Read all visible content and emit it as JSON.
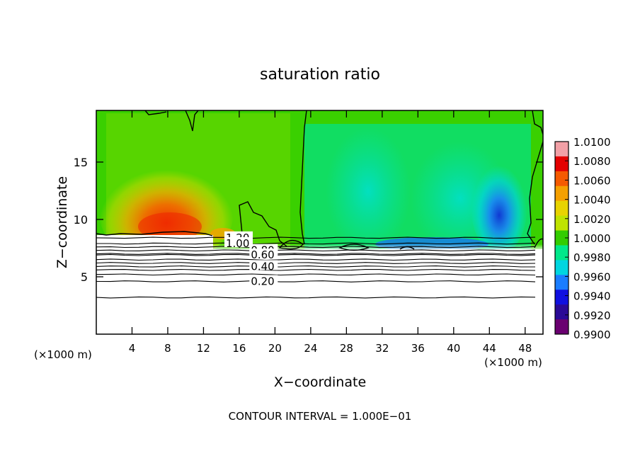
{
  "chart_data": {
    "type": "heatmap",
    "title": "saturation ratio",
    "xlabel": "X−coordinate",
    "ylabel": "Z−coordinate",
    "x_unit_left": "(×1000 m)",
    "x_unit_right": "(×1000 m)",
    "footer": "CONTOUR INTERVAL = 1.000E−01",
    "xlim": [
      0,
      50
    ],
    "ylim": [
      0,
      19.5
    ],
    "x_ticks": [
      4,
      8,
      12,
      16,
      20,
      24,
      28,
      32,
      36,
      40,
      44,
      48
    ],
    "y_ticks": [
      5,
      10,
      15
    ],
    "colorbar": {
      "ticks": [
        "1.0100",
        "1.0080",
        "1.0060",
        "1.0040",
        "1.0020",
        "1.0000",
        "0.9980",
        "0.9960",
        "0.9940",
        "0.9920",
        "0.9900"
      ],
      "colors": [
        "#f2a0a6",
        "#e30000",
        "#f55a00",
        "#f5a000",
        "#e8d300",
        "#bfe300",
        "#33cc00",
        "#00e88a",
        "#00d6e0",
        "#1a7dff",
        "#1010e0",
        "#2a0a96",
        "#6a0070"
      ]
    },
    "contour_lines": [
      {
        "label": "1.20",
        "z": 8.4,
        "label_x": 14.5
      },
      {
        "label": "1.00",
        "z": 7.9,
        "label_x": 14.5
      },
      {
        "label": "0.80",
        "z": 7.3,
        "label_x": 17.3
      },
      {
        "label": "0.60",
        "z": 6.9,
        "label_x": 17.3
      },
      {
        "label": "0.40",
        "z": 5.9,
        "label_x": 17.3
      },
      {
        "label": "0.20",
        "z": 4.6,
        "label_x": 17.3
      }
    ],
    "extra_contours_z": [
      7.6,
      7.0,
      6.5,
      6.2,
      5.6,
      5.2,
      3.2
    ]
  }
}
